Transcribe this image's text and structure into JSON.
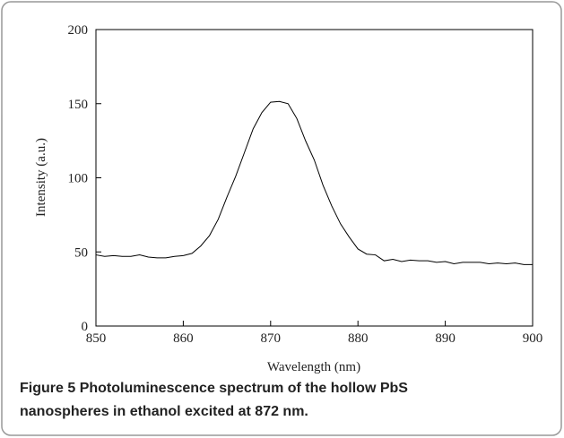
{
  "chart_data": {
    "type": "line",
    "x_label": "Wavelength (nm)",
    "y_label": "Intensity (a.u.)",
    "x": [
      850,
      851,
      852,
      853,
      854,
      855,
      856,
      857,
      858,
      859,
      860,
      861,
      862,
      863,
      864,
      865,
      866,
      867,
      868,
      869,
      870,
      871,
      872,
      873,
      874,
      875,
      876,
      877,
      878,
      879,
      880,
      881,
      882,
      883,
      884,
      885,
      886,
      887,
      888,
      889,
      890,
      891,
      892,
      893,
      894,
      895,
      896,
      897,
      898,
      899,
      900
    ],
    "series": [
      {
        "color": "#000000",
        "values": [
          48,
          47,
          47.5,
          47,
          47,
          48,
          46.5,
          46,
          46,
          47,
          47.5,
          49,
          54,
          61,
          72,
          87,
          101,
          117,
          133,
          144,
          151,
          151.5,
          150,
          140,
          125,
          112,
          95,
          81,
          69,
          60,
          52,
          48.5,
          48,
          44,
          45,
          43.5,
          44.5,
          44,
          44,
          43,
          43.5,
          42,
          43,
          43,
          43,
          42,
          42.5,
          42,
          42.5,
          41.5,
          41.5
        ]
      }
    ],
    "xlim": [
      850,
      900
    ],
    "xticks": [
      850,
      860,
      870,
      880,
      890,
      900
    ],
    "ylim": [
      0,
      200
    ],
    "yticks": [
      0,
      50,
      100,
      150,
      200
    ]
  },
  "caption": {
    "label": "Figure 5",
    "lines": [
      "Photoluminescence spectrum of the hollow PbS",
      "nanospheres in ethanol excited at 872 nm."
    ]
  }
}
